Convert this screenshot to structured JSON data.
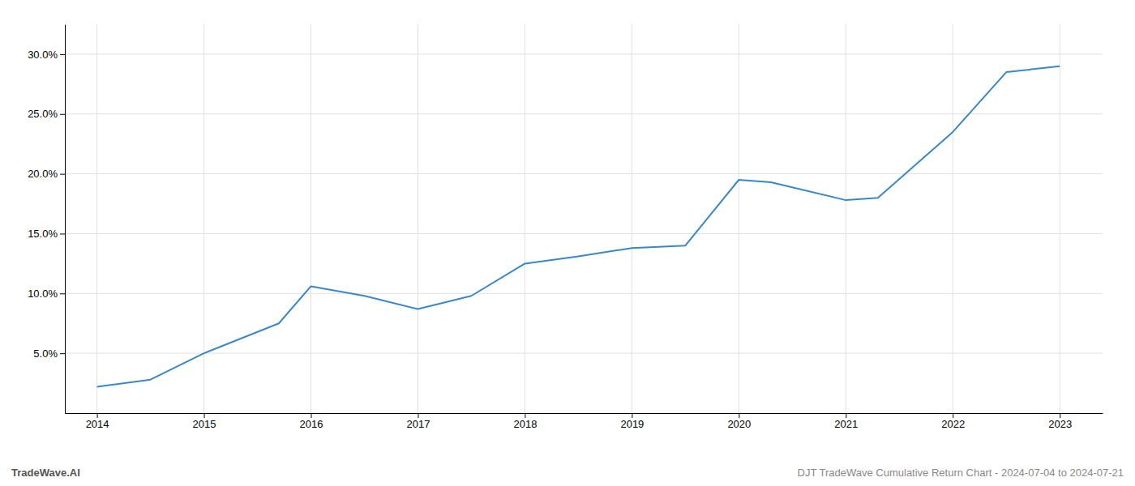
{
  "chart_data": {
    "type": "line",
    "x": [
      2014,
      2014.5,
      2015,
      2015.7,
      2016,
      2016.5,
      2017,
      2017.5,
      2018,
      2018.5,
      2019,
      2019.5,
      2020,
      2020.3,
      2021,
      2021.3,
      2022,
      2022.5,
      2023
    ],
    "values": [
      2.2,
      2.8,
      5.0,
      7.5,
      10.6,
      9.8,
      8.7,
      9.8,
      12.5,
      13.1,
      13.8,
      14.0,
      19.5,
      19.3,
      17.8,
      18.0,
      23.5,
      28.5,
      29.0
    ],
    "color": "#3a87c8",
    "xlim": [
      2013.7,
      2023.4
    ],
    "ylim": [
      0.0,
      32.5
    ],
    "xticks": [
      2014,
      2015,
      2016,
      2017,
      2018,
      2019,
      2020,
      2021,
      2022,
      2023
    ],
    "yticks": [
      {
        "value": 5.0,
        "label": "5.0%"
      },
      {
        "value": 10.0,
        "label": "10.0%"
      },
      {
        "value": 15.0,
        "label": "15.0%"
      },
      {
        "value": 20.0,
        "label": "20.0%"
      },
      {
        "value": 25.0,
        "label": "25.0%"
      },
      {
        "value": 30.0,
        "label": "30.0%"
      }
    ],
    "grid": true,
    "annotations": [
      "TradeWave.AI",
      "DJT TradeWave Cumulative Return Chart - 2024-07-04 to 2024-07-21"
    ]
  }
}
